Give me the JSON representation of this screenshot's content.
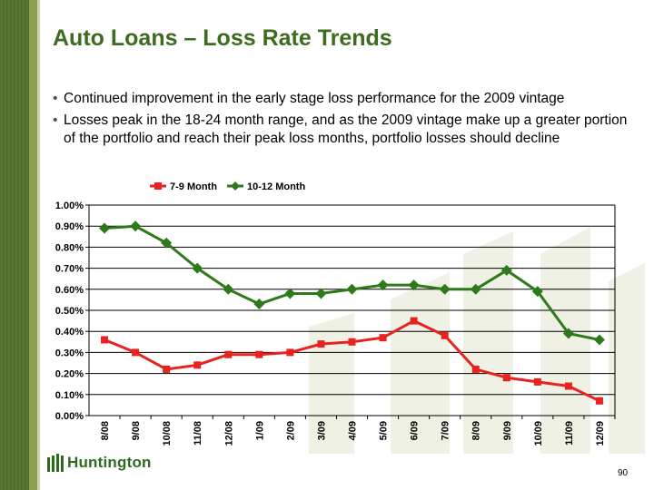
{
  "header": {
    "title": "Auto Loans – Loss Rate Trends"
  },
  "bullets": [
    "Continued improvement in the early stage loss performance for the 2009 vintage",
    "Losses peak in the 18-24 month range, and as the 2009 vintage make up a greater portion of the portfolio and reach their peak loss months, portfolio losses should decline"
  ],
  "footer": {
    "logo_text": "Huntington",
    "page_number": "90"
  },
  "colors": {
    "title": "#3d6b1f",
    "series_red": "#e8231f",
    "series_green": "#2e7a1a"
  },
  "chart_data": {
    "type": "line",
    "categories": [
      "8/08",
      "9/08",
      "10/08",
      "11/08",
      "12/08",
      "1/09",
      "2/09",
      "3/09",
      "4/09",
      "5/09",
      "6/09",
      "7/09",
      "8/09",
      "9/09",
      "10/09",
      "11/09",
      "12/09"
    ],
    "series": [
      {
        "name": "7-9 Month",
        "color": "#e8231f",
        "marker": "square",
        "values": [
          0.36,
          0.3,
          0.22,
          0.24,
          0.29,
          0.29,
          0.3,
          0.34,
          0.35,
          0.37,
          0.45,
          0.38,
          0.22,
          0.18,
          0.16,
          0.14,
          0.07
        ]
      },
      {
        "name": "10-12 Month",
        "color": "#2e7a1a",
        "marker": "diamond",
        "values": [
          0.89,
          0.9,
          0.82,
          0.7,
          0.6,
          0.53,
          0.58,
          0.58,
          0.6,
          0.62,
          0.62,
          0.6,
          0.6,
          0.69,
          0.59,
          0.39,
          0.36
        ]
      }
    ],
    "yticks": [
      "0.00%",
      "0.10%",
      "0.20%",
      "0.30%",
      "0.40%",
      "0.50%",
      "0.60%",
      "0.70%",
      "0.80%",
      "0.90%",
      "1.00%"
    ],
    "ylim": [
      0,
      1.0
    ],
    "grid": true,
    "legend": "top-center",
    "title": "",
    "xlabel": "",
    "ylabel": ""
  }
}
